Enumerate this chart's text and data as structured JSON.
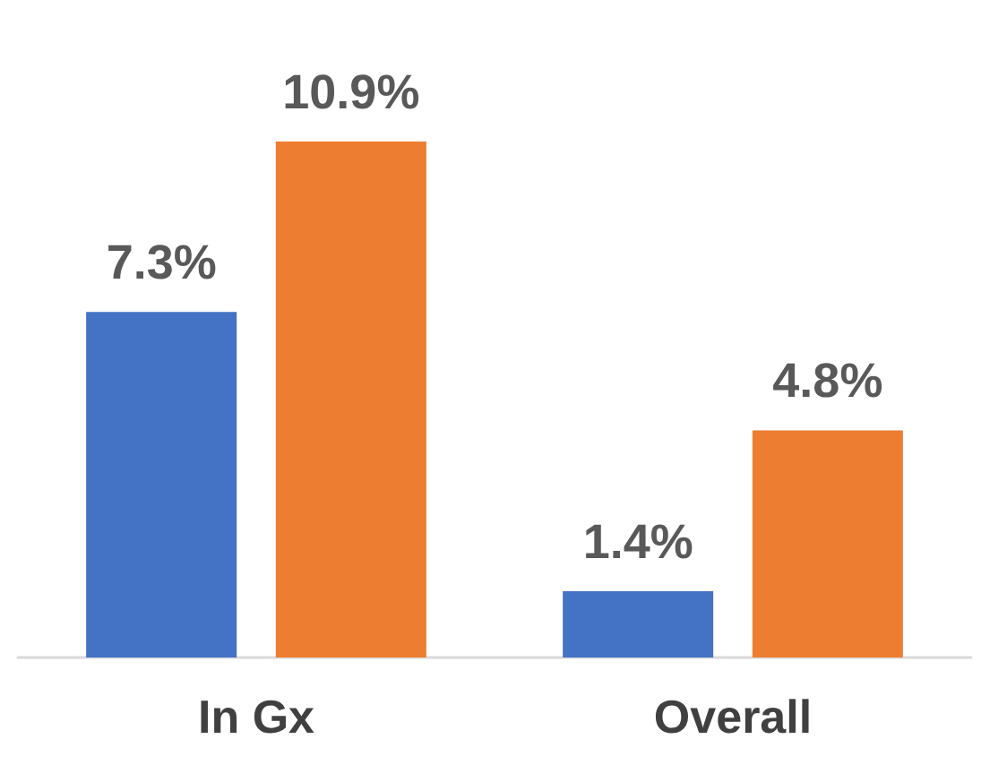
{
  "chart_data": {
    "type": "bar",
    "categories": [
      "In Gx",
      "Overall"
    ],
    "series": [
      {
        "color": "#4472c4",
        "values": [
          7.3,
          1.4
        ],
        "value_labels": [
          "7.3%",
          "1.4%"
        ]
      },
      {
        "color": "#ed7d31",
        "values": [
          10.9,
          4.8
        ],
        "value_labels": [
          "10.9%",
          "4.8%"
        ]
      }
    ]
  }
}
